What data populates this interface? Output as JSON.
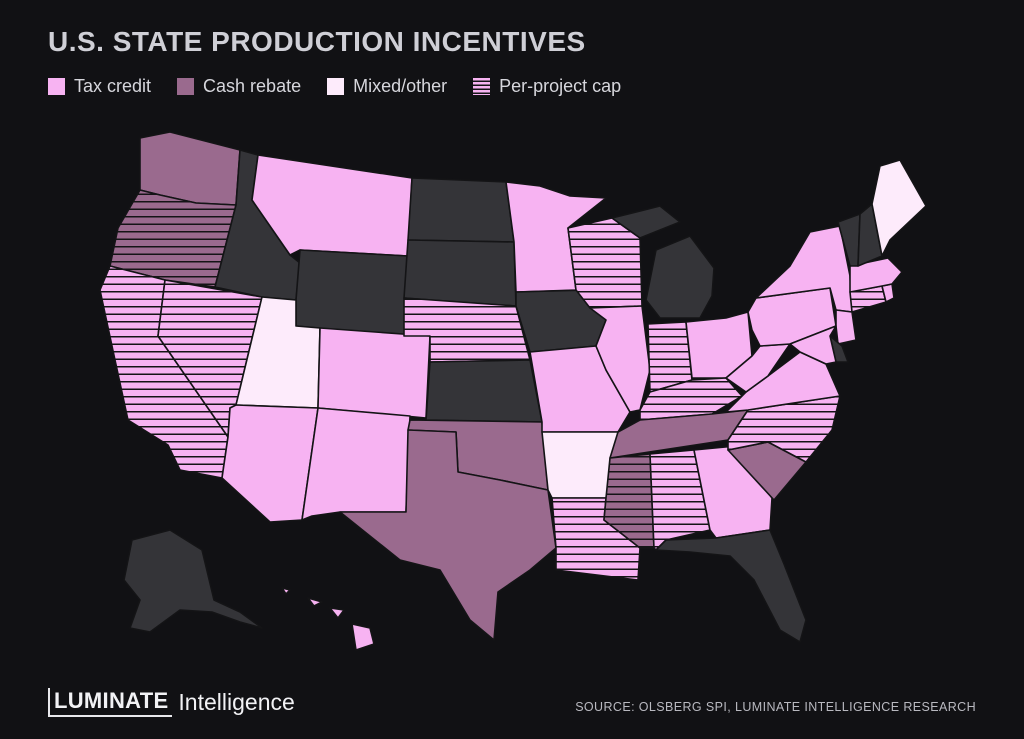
{
  "title": "U.S. STATE PRODUCTION INCENTIVES",
  "legend": [
    {
      "label": "Tax credit",
      "color": "#f7b3f2",
      "pattern": "solid"
    },
    {
      "label": "Cash rebate",
      "color": "#9a6a8e",
      "pattern": "solid"
    },
    {
      "label": "Mixed/other",
      "color": "#fdebfb",
      "pattern": "solid"
    },
    {
      "label": "Per-project cap",
      "color": "#f7b3f2",
      "pattern": "horizontal-stripes"
    }
  ],
  "colors": {
    "background": "#111114",
    "no_incentive": "#343438",
    "tax_credit": "#f7b3f2",
    "cash_rebate": "#9a6a8e",
    "mixed_other": "#fdebfb",
    "stripe": "#141416"
  },
  "states": [
    {
      "id": "WA",
      "category": "cash_rebate",
      "cap": false
    },
    {
      "id": "OR",
      "category": "cash_rebate",
      "cap": true
    },
    {
      "id": "CA",
      "category": "tax_credit",
      "cap": true
    },
    {
      "id": "NV",
      "category": "tax_credit",
      "cap": true
    },
    {
      "id": "ID",
      "category": "none",
      "cap": false
    },
    {
      "id": "MT",
      "category": "tax_credit",
      "cap": false
    },
    {
      "id": "WY",
      "category": "none",
      "cap": false
    },
    {
      "id": "UT",
      "category": "mixed_other",
      "cap": false
    },
    {
      "id": "CO",
      "category": "tax_credit",
      "cap": false
    },
    {
      "id": "AZ",
      "category": "tax_credit",
      "cap": false
    },
    {
      "id": "NM",
      "category": "tax_credit",
      "cap": false
    },
    {
      "id": "ND",
      "category": "none",
      "cap": false
    },
    {
      "id": "SD",
      "category": "none",
      "cap": false
    },
    {
      "id": "NE",
      "category": "tax_credit",
      "cap": true
    },
    {
      "id": "KS",
      "category": "none",
      "cap": false
    },
    {
      "id": "OK",
      "category": "cash_rebate",
      "cap": false
    },
    {
      "id": "TX",
      "category": "cash_rebate",
      "cap": false
    },
    {
      "id": "MN",
      "category": "tax_credit",
      "cap": false
    },
    {
      "id": "IA",
      "category": "none",
      "cap": false
    },
    {
      "id": "MO",
      "category": "tax_credit",
      "cap": false
    },
    {
      "id": "AR",
      "category": "mixed_other",
      "cap": false
    },
    {
      "id": "LA",
      "category": "tax_credit",
      "cap": true
    },
    {
      "id": "WI",
      "category": "tax_credit",
      "cap": true
    },
    {
      "id": "IL",
      "category": "tax_credit",
      "cap": false
    },
    {
      "id": "MI",
      "category": "none",
      "cap": false
    },
    {
      "id": "IN",
      "category": "tax_credit",
      "cap": true
    },
    {
      "id": "OH",
      "category": "tax_credit",
      "cap": false
    },
    {
      "id": "KY",
      "category": "tax_credit",
      "cap": true
    },
    {
      "id": "TN",
      "category": "cash_rebate",
      "cap": false
    },
    {
      "id": "MS",
      "category": "cash_rebate",
      "cap": true
    },
    {
      "id": "AL",
      "category": "tax_credit",
      "cap": true
    },
    {
      "id": "GA",
      "category": "tax_credit",
      "cap": false
    },
    {
      "id": "FL",
      "category": "none",
      "cap": false
    },
    {
      "id": "SC",
      "category": "cash_rebate",
      "cap": false
    },
    {
      "id": "NC",
      "category": "tax_credit",
      "cap": true
    },
    {
      "id": "VA",
      "category": "tax_credit",
      "cap": false
    },
    {
      "id": "WV",
      "category": "tax_credit",
      "cap": false
    },
    {
      "id": "PA",
      "category": "tax_credit",
      "cap": false
    },
    {
      "id": "NY",
      "category": "tax_credit",
      "cap": false
    },
    {
      "id": "NJ",
      "category": "tax_credit",
      "cap": false
    },
    {
      "id": "DE",
      "category": "none",
      "cap": false
    },
    {
      "id": "MD",
      "category": "tax_credit",
      "cap": false
    },
    {
      "id": "CT",
      "category": "tax_credit",
      "cap": true
    },
    {
      "id": "RI",
      "category": "tax_credit",
      "cap": false
    },
    {
      "id": "MA",
      "category": "tax_credit",
      "cap": false
    },
    {
      "id": "VT",
      "category": "none",
      "cap": false
    },
    {
      "id": "NH",
      "category": "none",
      "cap": false
    },
    {
      "id": "ME",
      "category": "mixed_other",
      "cap": false
    },
    {
      "id": "AK",
      "category": "none",
      "cap": false
    },
    {
      "id": "HI",
      "category": "tax_credit",
      "cap": false
    }
  ],
  "footer": {
    "logo_brand": "LUMINATE",
    "logo_suffix": "Intelligence",
    "source": "SOURCE: OLSBERG SPI, LUMINATE INTELLIGENCE RESEARCH"
  }
}
